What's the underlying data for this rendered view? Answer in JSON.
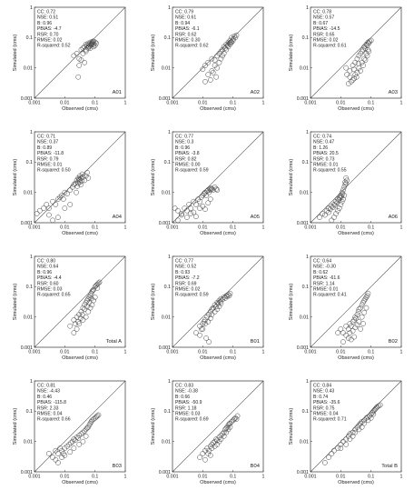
{
  "figure": {
    "xlabel": "Observed (cms)",
    "ylabel": "Simulated (cms)",
    "tick_labels": [
      "0.001",
      "0.01",
      "0.1",
      "1"
    ]
  },
  "chart_data": [
    {
      "type": "scatter",
      "label": "A01",
      "stats": [
        "CC: 0.72",
        "NSE: 0.51",
        "B: 0.96",
        "PBIAS: -4.7",
        "RSR: 0.70",
        "RMSE: 0.02",
        "R-squared: 0.52"
      ],
      "xlim": [
        0.001,
        1
      ],
      "ylim": [
        0.001,
        1
      ],
      "log": true,
      "x": [
        0.02,
        0.025,
        0.03,
        0.035,
        0.04,
        0.045,
        0.05,
        0.055,
        0.06,
        0.065,
        0.07,
        0.075,
        0.08,
        0.085,
        0.09,
        0.1,
        0.11,
        0.05,
        0.06,
        0.07,
        0.08,
        0.09,
        0.1,
        0.035,
        0.04,
        0.045,
        0.03,
        0.028,
        0.05,
        0.06,
        0.07,
        0.09,
        0.08,
        0.065
      ],
      "y": [
        0.025,
        0.03,
        0.02,
        0.04,
        0.045,
        0.05,
        0.06,
        0.055,
        0.065,
        0.05,
        0.07,
        0.06,
        0.065,
        0.075,
        0.06,
        0.07,
        0.065,
        0.035,
        0.045,
        0.055,
        0.06,
        0.05,
        0.055,
        0.018,
        0.03,
        0.015,
        0.012,
        0.005,
        0.04,
        0.05,
        0.045,
        0.075,
        0.07,
        0.06
      ]
    },
    {
      "type": "scatter",
      "label": "A02",
      "stats": [
        "CC: 0.79",
        "NSE: 0.61",
        "B: 0.94",
        "PBIAS: -6.1",
        "RSR: 0.62",
        "RMSE: 0.30",
        "R-squared: 0.62"
      ],
      "xlim": [
        0.001,
        1
      ],
      "ylim": [
        0.001,
        1
      ],
      "log": true,
      "x": [
        0.01,
        0.012,
        0.015,
        0.02,
        0.025,
        0.03,
        0.035,
        0.04,
        0.045,
        0.05,
        0.055,
        0.06,
        0.065,
        0.07,
        0.075,
        0.08,
        0.085,
        0.09,
        0.1,
        0.11,
        0.12,
        0.13,
        0.02,
        0.025,
        0.03,
        0.04,
        0.05,
        0.06,
        0.07,
        0.08,
        0.09,
        0.1,
        0.015,
        0.035,
        0.045,
        0.018,
        0.028,
        0.012,
        0.022
      ],
      "y": [
        0.009,
        0.012,
        0.015,
        0.02,
        0.018,
        0.025,
        0.03,
        0.035,
        0.04,
        0.05,
        0.045,
        0.06,
        0.055,
        0.07,
        0.065,
        0.08,
        0.07,
        0.1,
        0.09,
        0.11,
        0.1,
        0.12,
        0.008,
        0.012,
        0.01,
        0.02,
        0.03,
        0.04,
        0.05,
        0.06,
        0.07,
        0.08,
        0.006,
        0.015,
        0.025,
        0.004,
        0.005,
        0.0035,
        0.007
      ]
    },
    {
      "type": "scatter",
      "label": "A03",
      "stats": [
        "CC: 0.78",
        "NSE: 0.57",
        "B: 0.67",
        "PBIAS: -14.5",
        "RSR: 0.65",
        "RMSE: 0.02",
        "R-squared: 0.61"
      ],
      "xlim": [
        0.001,
        1
      ],
      "ylim": [
        0.001,
        1
      ],
      "log": true,
      "x": [
        0.015,
        0.02,
        0.025,
        0.03,
        0.035,
        0.04,
        0.045,
        0.05,
        0.055,
        0.06,
        0.065,
        0.07,
        0.075,
        0.08,
        0.085,
        0.09,
        0.1,
        0.02,
        0.025,
        0.03,
        0.035,
        0.04,
        0.05,
        0.06,
        0.07,
        0.08,
        0.018,
        0.022,
        0.028,
        0.033,
        0.045,
        0.055,
        0.065,
        0.075,
        0.085,
        0.016,
        0.027,
        0.038
      ],
      "y": [
        0.01,
        0.008,
        0.012,
        0.015,
        0.02,
        0.025,
        0.03,
        0.035,
        0.04,
        0.05,
        0.045,
        0.06,
        0.055,
        0.07,
        0.065,
        0.075,
        0.08,
        0.005,
        0.004,
        0.006,
        0.007,
        0.01,
        0.015,
        0.02,
        0.03,
        0.04,
        0.003,
        0.0035,
        0.0045,
        0.005,
        0.008,
        0.012,
        0.018,
        0.025,
        0.035,
        0.006,
        0.009,
        0.014
      ]
    },
    {
      "type": "scatter",
      "label": "A04",
      "stats": [
        "CC: 0.71",
        "NSE: 0.37",
        "B: 0.89",
        "PBIAS: -11.8",
        "RSR: 0.79",
        "RMSE: 0.01",
        "R-squared: 0.50"
      ],
      "xlim": [
        0.001,
        1
      ],
      "ylim": [
        0.001,
        1
      ],
      "log": true,
      "x": [
        0.0012,
        0.0015,
        0.002,
        0.0025,
        0.003,
        0.004,
        0.005,
        0.006,
        0.007,
        0.008,
        0.009,
        0.01,
        0.012,
        0.015,
        0.018,
        0.02,
        0.022,
        0.025,
        0.028,
        0.03,
        0.032,
        0.035,
        0.038,
        0.04,
        0.045,
        0.05,
        0.055,
        0.06,
        0.028,
        0.032,
        0.036,
        0.03,
        0.034,
        0.026,
        0.024,
        0.015,
        0.01,
        0.006,
        0.004,
        0.003
      ],
      "y": [
        0.002,
        0.0025,
        0.003,
        0.004,
        0.003,
        0.005,
        0.004,
        0.006,
        0.007,
        0.008,
        0.006,
        0.01,
        0.009,
        0.012,
        0.015,
        0.018,
        0.02,
        0.025,
        0.03,
        0.028,
        0.035,
        0.03,
        0.04,
        0.032,
        0.025,
        0.035,
        0.045,
        0.03,
        0.02,
        0.022,
        0.024,
        0.026,
        0.018,
        0.016,
        0.01,
        0.004,
        0.003,
        0.0015,
        0.0012,
        0.0018
      ]
    },
    {
      "type": "scatter",
      "label": "A05",
      "stats": [
        "CC: 0.77",
        "NSE: 0.3",
        "B: 0.96",
        "PBIAS: -3.8",
        "RSR: 0.82",
        "RMSE: 0.00",
        "R-squared: 0.59"
      ],
      "xlim": [
        0.001,
        1
      ],
      "ylim": [
        0.001,
        1
      ],
      "log": true,
      "x": [
        0.0012,
        0.0015,
        0.002,
        0.0025,
        0.003,
        0.0035,
        0.004,
        0.005,
        0.006,
        0.007,
        0.008,
        0.009,
        0.01,
        0.011,
        0.012,
        0.013,
        0.014,
        0.015,
        0.016,
        0.017,
        0.018,
        0.019,
        0.02,
        0.022,
        0.025,
        0.028,
        0.03,
        0.0015,
        0.002,
        0.003,
        0.004,
        0.005,
        0.006,
        0.008,
        0.01,
        0.012,
        0.015,
        0.018
      ],
      "y": [
        0.003,
        0.0025,
        0.002,
        0.003,
        0.0025,
        0.004,
        0.003,
        0.005,
        0.004,
        0.006,
        0.005,
        0.007,
        0.008,
        0.009,
        0.01,
        0.008,
        0.011,
        0.012,
        0.01,
        0.013,
        0.012,
        0.014,
        0.013,
        0.012,
        0.015,
        0.013,
        0.012,
        0.0012,
        0.0018,
        0.0015,
        0.002,
        0.0022,
        0.0016,
        0.003,
        0.0035,
        0.0028,
        0.0045,
        0.006
      ]
    },
    {
      "type": "scatter",
      "label": "A06",
      "stats": [
        "CC: 0.74",
        "NSE: 0.47",
        "B: 1.26",
        "PBIAS: 20.5",
        "RSR: 0.73",
        "RMSE: 0.01",
        "R-squared: 0.55"
      ],
      "xlim": [
        0.001,
        1
      ],
      "ylim": [
        0.001,
        1
      ],
      "log": true,
      "x": [
        0.002,
        0.0025,
        0.003,
        0.0035,
        0.004,
        0.005,
        0.006,
        0.007,
        0.008,
        0.009,
        0.01,
        0.011,
        0.012,
        0.013,
        0.014,
        0.015,
        0.016,
        0.005,
        0.006,
        0.007,
        0.008,
        0.009,
        0.01,
        0.011,
        0.012,
        0.013,
        0.004,
        0.0045,
        0.0055,
        0.0065,
        0.0075,
        0.0085,
        0.0095,
        0.0105,
        0.0115,
        0.015,
        0.014
      ],
      "y": [
        0.0015,
        0.002,
        0.0018,
        0.0025,
        0.003,
        0.0035,
        0.004,
        0.005,
        0.006,
        0.007,
        0.008,
        0.01,
        0.012,
        0.015,
        0.018,
        0.02,
        0.025,
        0.0012,
        0.0015,
        0.002,
        0.0025,
        0.003,
        0.004,
        0.005,
        0.006,
        0.008,
        0.0022,
        0.0028,
        0.0032,
        0.0038,
        0.0045,
        0.0055,
        0.0065,
        0.0075,
        0.009,
        0.03,
        0.022
      ]
    },
    {
      "type": "scatter",
      "label": "Total A",
      "stats": [
        "CC: 0.80",
        "NSE: 0.64",
        "B: 0.96",
        "PBIAS: -4.4",
        "RSR: 0.60",
        "RMSE: 0.03",
        "R-squared: 0.65"
      ],
      "xlim": [
        0.001,
        1
      ],
      "ylim": [
        0.001,
        1
      ],
      "log": true,
      "x": [
        0.015,
        0.02,
        0.025,
        0.03,
        0.035,
        0.04,
        0.045,
        0.05,
        0.055,
        0.06,
        0.065,
        0.07,
        0.075,
        0.08,
        0.085,
        0.09,
        0.1,
        0.11,
        0.12,
        0.13,
        0.14,
        0.025,
        0.03,
        0.04,
        0.05,
        0.06,
        0.07,
        0.08,
        0.09,
        0.1,
        0.02,
        0.022,
        0.028,
        0.033,
        0.038,
        0.045,
        0.055,
        0.065,
        0.075,
        0.12
      ],
      "y": [
        0.005,
        0.008,
        0.01,
        0.012,
        0.015,
        0.02,
        0.025,
        0.03,
        0.035,
        0.04,
        0.045,
        0.05,
        0.06,
        0.07,
        0.075,
        0.08,
        0.1,
        0.11,
        0.12,
        0.13,
        0.14,
        0.004,
        0.006,
        0.008,
        0.01,
        0.015,
        0.02,
        0.025,
        0.035,
        0.045,
        0.003,
        0.006,
        0.007,
        0.009,
        0.012,
        0.018,
        0.022,
        0.03,
        0.04,
        0.09
      ]
    },
    {
      "type": "scatter",
      "label": "B01",
      "stats": [
        "CC: 0.77",
        "NSE: 0.52",
        "B: 0.93",
        "PBIAS: -7.2",
        "RSR: 0.69",
        "RMSE: 0.02",
        "R-squared: 0.59"
      ],
      "xlim": [
        0.001,
        1
      ],
      "ylim": [
        0.001,
        1
      ],
      "log": true,
      "x": [
        0.006,
        0.008,
        0.01,
        0.012,
        0.014,
        0.016,
        0.018,
        0.02,
        0.022,
        0.025,
        0.028,
        0.03,
        0.032,
        0.035,
        0.038,
        0.04,
        0.045,
        0.05,
        0.055,
        0.06,
        0.065,
        0.07,
        0.075,
        0.08,
        0.01,
        0.012,
        0.015,
        0.018,
        0.02,
        0.025,
        0.03,
        0.035,
        0.04,
        0.008,
        0.009,
        0.011,
        0.013,
        0.016
      ],
      "y": [
        0.003,
        0.005,
        0.006,
        0.008,
        0.01,
        0.012,
        0.015,
        0.018,
        0.02,
        0.025,
        0.022,
        0.03,
        0.028,
        0.035,
        0.032,
        0.04,
        0.038,
        0.045,
        0.042,
        0.05,
        0.048,
        0.055,
        0.05,
        0.06,
        0.004,
        0.006,
        0.007,
        0.009,
        0.012,
        0.015,
        0.018,
        0.022,
        0.028,
        0.0025,
        0.004,
        0.007,
        0.002,
        0.0015
      ]
    },
    {
      "type": "scatter",
      "label": "B02",
      "stats": [
        "CC: 0.64",
        "NSE: -0.30",
        "B: 0.62",
        "PBIAS: -61.6",
        "RSR: 1.14",
        "RMSE: 0.01",
        "R-squared: 0.41"
      ],
      "xlim": [
        0.001,
        1
      ],
      "ylim": [
        0.001,
        1
      ],
      "log": true,
      "x": [
        0.008,
        0.01,
        0.012,
        0.015,
        0.018,
        0.02,
        0.022,
        0.025,
        0.028,
        0.03,
        0.032,
        0.035,
        0.038,
        0.04,
        0.045,
        0.05,
        0.055,
        0.06,
        0.065,
        0.07,
        0.075,
        0.08,
        0.015,
        0.02,
        0.025,
        0.03,
        0.035,
        0.04,
        0.05,
        0.06,
        0.07,
        0.012,
        0.018,
        0.022,
        0.028,
        0.045,
        0.055
      ],
      "y": [
        0.003,
        0.004,
        0.003,
        0.005,
        0.004,
        0.006,
        0.005,
        0.007,
        0.008,
        0.01,
        0.009,
        0.012,
        0.015,
        0.018,
        0.02,
        0.025,
        0.03,
        0.035,
        0.04,
        0.045,
        0.05,
        0.06,
        0.0025,
        0.003,
        0.0035,
        0.0045,
        0.0055,
        0.007,
        0.01,
        0.014,
        0.02,
        0.0015,
        0.002,
        0.0018,
        0.0022,
        0.004,
        0.006
      ]
    },
    {
      "type": "scatter",
      "label": "B03",
      "stats": [
        "CC: 0.81",
        "NSE: -4.43",
        "B: 0.46",
        "PBIAS: -115.8",
        "RSR: 2.33",
        "RMSE: 0.04",
        "R-squared: 0.66"
      ],
      "xlim": [
        0.001,
        1
      ],
      "ylim": [
        0.001,
        1
      ],
      "log": true,
      "x": [
        0.003,
        0.004,
        0.005,
        0.006,
        0.007,
        0.008,
        0.009,
        0.01,
        0.012,
        0.014,
        0.016,
        0.018,
        0.02,
        0.022,
        0.025,
        0.028,
        0.03,
        0.035,
        0.04,
        0.045,
        0.05,
        0.055,
        0.06,
        0.065,
        0.07,
        0.075,
        0.08,
        0.09,
        0.1,
        0.11,
        0.12,
        0.13,
        0.005,
        0.006,
        0.008,
        0.01,
        0.015,
        0.02,
        0.03,
        0.04,
        0.05
      ],
      "y": [
        0.004,
        0.003,
        0.005,
        0.004,
        0.006,
        0.005,
        0.004,
        0.006,
        0.007,
        0.008,
        0.009,
        0.01,
        0.012,
        0.011,
        0.014,
        0.013,
        0.016,
        0.018,
        0.02,
        0.022,
        0.025,
        0.028,
        0.03,
        0.035,
        0.04,
        0.045,
        0.05,
        0.055,
        0.06,
        0.065,
        0.07,
        0.075,
        0.0025,
        0.002,
        0.003,
        0.0035,
        0.0045,
        0.006,
        0.008,
        0.01,
        0.015
      ]
    },
    {
      "type": "scatter",
      "label": "B04",
      "stats": [
        "CC: 0.83",
        "NSE: -0.38",
        "B: 0.66",
        "PBIAS: -50.9",
        "RSR: 1.18",
        "RMSE: 0.03",
        "R-squared: 0.69"
      ],
      "xlim": [
        0.001,
        1
      ],
      "ylim": [
        0.001,
        1
      ],
      "log": true,
      "x": [
        0.008,
        0.01,
        0.012,
        0.014,
        0.016,
        0.018,
        0.02,
        0.022,
        0.025,
        0.028,
        0.03,
        0.035,
        0.04,
        0.045,
        0.05,
        0.055,
        0.06,
        0.065,
        0.07,
        0.075,
        0.08,
        0.09,
        0.1,
        0.11,
        0.12,
        0.13,
        0.14,
        0.015,
        0.02,
        0.025,
        0.03,
        0.035,
        0.04,
        0.05,
        0.06,
        0.07,
        0.08,
        0.012,
        0.018
      ],
      "y": [
        0.003,
        0.004,
        0.005,
        0.006,
        0.005,
        0.007,
        0.008,
        0.009,
        0.01,
        0.012,
        0.011,
        0.014,
        0.016,
        0.018,
        0.02,
        0.025,
        0.028,
        0.03,
        0.035,
        0.038,
        0.04,
        0.045,
        0.05,
        0.055,
        0.06,
        0.055,
        0.07,
        0.004,
        0.006,
        0.007,
        0.008,
        0.01,
        0.012,
        0.015,
        0.02,
        0.025,
        0.03,
        0.0025,
        0.0035
      ]
    },
    {
      "type": "scatter",
      "label": "Total B",
      "stats": [
        "CC: 0.84",
        "NSE: 0.43",
        "B: 0.74",
        "PBIAS: -35.6",
        "RSR: 0.75",
        "RMSE: 0.04",
        "R-squared: 0.71"
      ],
      "xlim": [
        0.001,
        1
      ],
      "ylim": [
        0.001,
        1
      ],
      "log": true,
      "x": [
        0.003,
        0.004,
        0.005,
        0.006,
        0.008,
        0.01,
        0.012,
        0.015,
        0.018,
        0.02,
        0.025,
        0.03,
        0.035,
        0.04,
        0.045,
        0.05,
        0.06,
        0.07,
        0.08,
        0.09,
        0.1,
        0.11,
        0.12,
        0.13,
        0.14,
        0.15,
        0.16,
        0.18,
        0.2,
        0.01,
        0.015,
        0.02,
        0.025,
        0.03,
        0.04,
        0.05,
        0.06,
        0.08,
        0.1,
        0.12
      ],
      "y": [
        0.002,
        0.003,
        0.004,
        0.005,
        0.006,
        0.008,
        0.01,
        0.012,
        0.015,
        0.018,
        0.02,
        0.025,
        0.03,
        0.035,
        0.04,
        0.045,
        0.05,
        0.06,
        0.065,
        0.07,
        0.08,
        0.09,
        0.1,
        0.11,
        0.12,
        0.13,
        0.14,
        0.15,
        0.16,
        0.006,
        0.008,
        0.012,
        0.015,
        0.02,
        0.025,
        0.03,
        0.04,
        0.05,
        0.06,
        0.08
      ]
    }
  ]
}
